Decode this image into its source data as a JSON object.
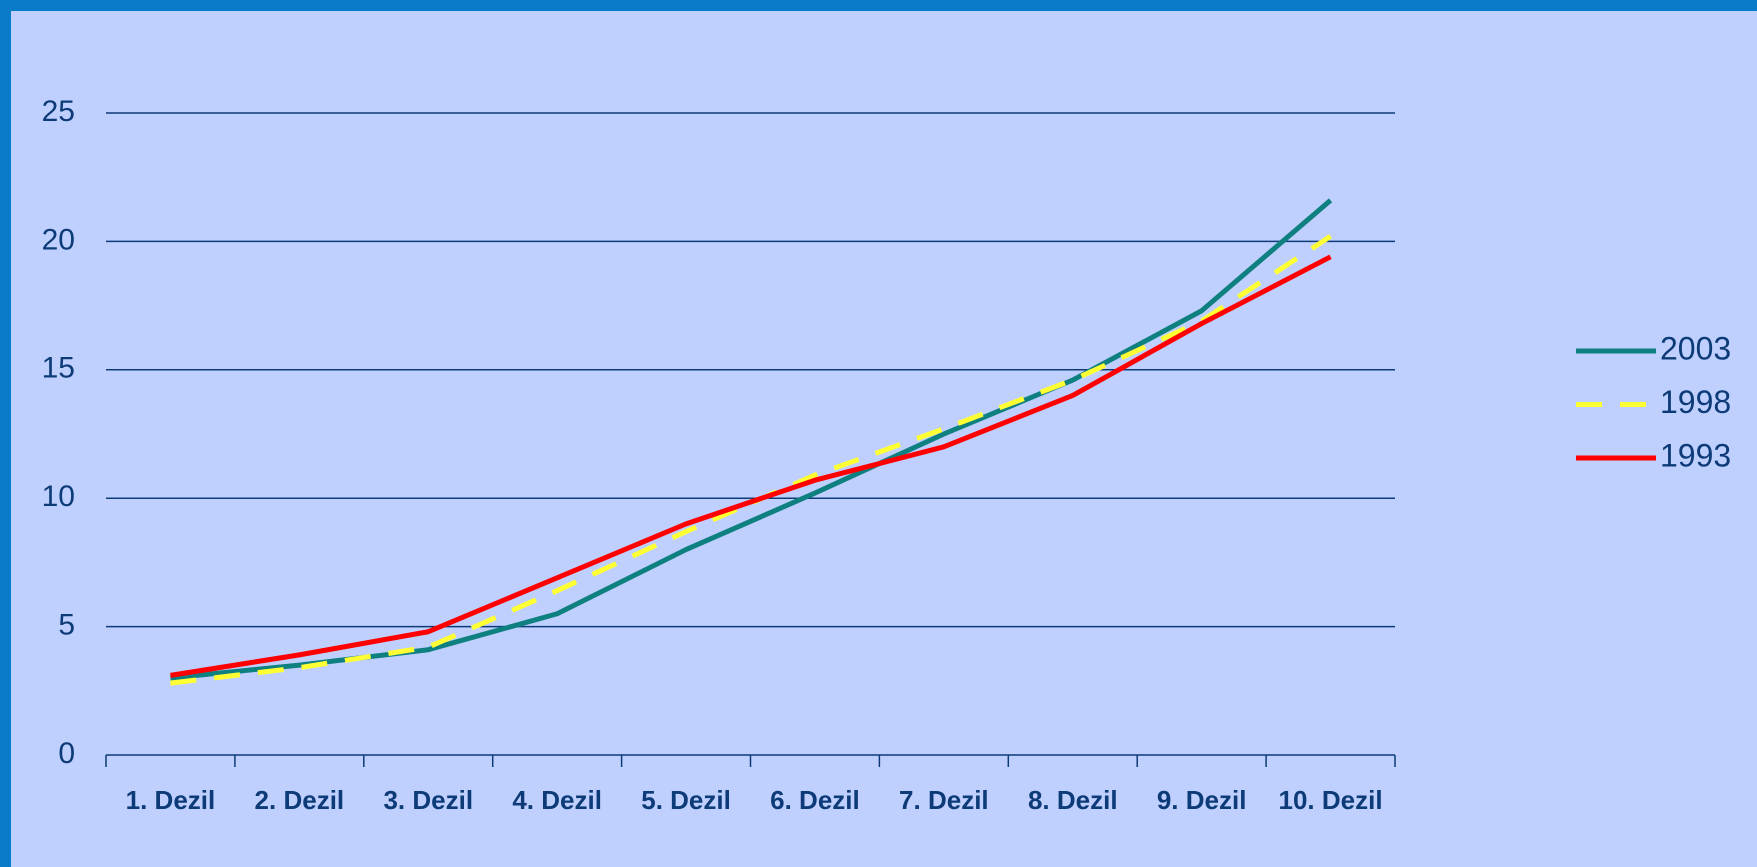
{
  "chart_data": {
    "type": "line",
    "categories": [
      "1. Dezil",
      "2. Dezil",
      "3. Dezil",
      "4. Dezil",
      "5. Dezil",
      "6. Dezil",
      "7. Dezil",
      "8. Dezil",
      "9. Dezil",
      "10. Dezil"
    ],
    "series": [
      {
        "name": "2003",
        "color": "#0f8080",
        "dash": false,
        "values": [
          3.0,
          3.5,
          4.1,
          5.5,
          8.0,
          10.2,
          12.5,
          14.6,
          17.3,
          21.6
        ]
      },
      {
        "name": "1998",
        "color": "#ffff33",
        "dash": true,
        "values": [
          2.8,
          3.4,
          4.2,
          6.4,
          8.7,
          10.9,
          12.7,
          14.6,
          16.9,
          20.2
        ]
      },
      {
        "name": "1993",
        "color": "#ff0000",
        "dash": false,
        "values": [
          3.1,
          3.9,
          4.8,
          6.9,
          9.0,
          10.7,
          12.0,
          14.0,
          16.8,
          19.4
        ]
      }
    ],
    "ylim": [
      0,
      25
    ],
    "yticks": [
      0,
      5,
      10,
      15,
      20,
      25
    ],
    "grid": true,
    "legend": "right"
  }
}
